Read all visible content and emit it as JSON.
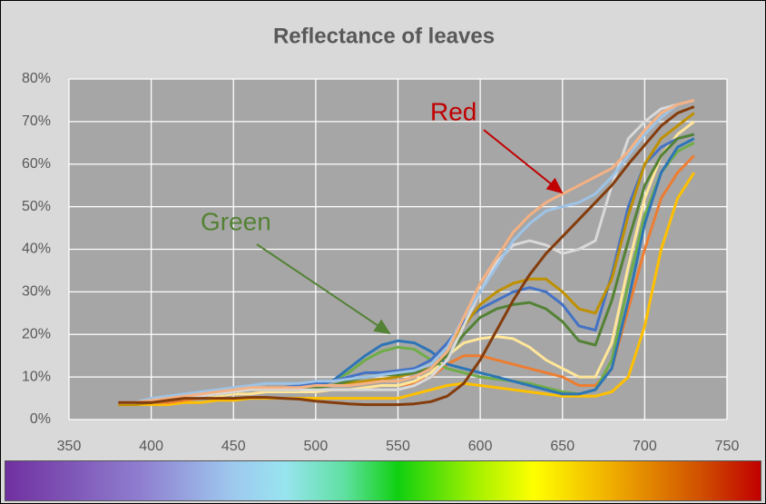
{
  "chart_data": {
    "type": "line",
    "title": "Reflectance of leaves",
    "x": [
      380,
      390,
      400,
      410,
      420,
      430,
      440,
      450,
      460,
      470,
      480,
      490,
      500,
      510,
      520,
      530,
      540,
      550,
      560,
      570,
      580,
      590,
      600,
      610,
      620,
      630,
      640,
      650,
      660,
      670,
      680,
      690,
      700,
      710,
      720,
      730
    ],
    "xlim": [
      350,
      750
    ],
    "xticks": [
      350,
      400,
      450,
      500,
      550,
      600,
      650,
      700,
      750
    ],
    "ylim": [
      0,
      80
    ],
    "yticks": [
      {
        "value": 0,
        "label": "0%"
      },
      {
        "value": 10,
        "label": "10%"
      },
      {
        "value": 20,
        "label": "20%"
      },
      {
        "value": 30,
        "label": "30%"
      },
      {
        "value": 40,
        "label": "40%"
      },
      {
        "value": 50,
        "label": "50%"
      },
      {
        "value": 60,
        "label": "60%"
      },
      {
        "value": 70,
        "label": "70%"
      },
      {
        "value": 80,
        "label": "80%"
      }
    ],
    "grid": true,
    "series": [
      {
        "color": "#ffc000",
        "values": [
          3.5,
          3.5,
          3.5,
          3.5,
          4,
          4,
          4.5,
          4.5,
          5,
          5,
          5,
          5,
          5,
          5,
          5,
          5,
          5,
          5,
          6,
          7,
          8,
          8.5,
          8,
          7.5,
          7,
          6.5,
          6,
          5.5,
          5.5,
          5.5,
          6.5,
          10,
          22,
          40,
          52,
          58
        ]
      },
      {
        "color": "#ed7d31",
        "values": [
          3.5,
          3.5,
          4,
          4,
          4.5,
          5,
          5.5,
          6,
          6,
          6.5,
          6.5,
          6.5,
          6.5,
          7,
          7,
          7.5,
          8,
          8,
          8.5,
          10,
          13,
          15,
          15,
          14,
          13,
          12,
          11,
          10,
          8,
          8,
          12,
          26,
          40,
          52,
          58,
          62
        ]
      },
      {
        "color": "#ffe699",
        "values": [
          4,
          4,
          4,
          4.5,
          5,
          5,
          5.5,
          6,
          6,
          6.5,
          6.5,
          6.5,
          6.5,
          7,
          7,
          7.5,
          8,
          8,
          9,
          11,
          15,
          18,
          19,
          19.5,
          19,
          17,
          14,
          12,
          10,
          10,
          18,
          36,
          52,
          62,
          67,
          70
        ]
      },
      {
        "color": "#70ad47",
        "values": [
          4,
          4,
          4,
          4.5,
          5,
          5.5,
          6,
          6.5,
          7,
          7.5,
          7.5,
          7.5,
          8,
          9,
          11,
          14,
          16,
          17,
          16.5,
          14,
          12,
          11,
          10,
          9.5,
          9,
          8.5,
          7.5,
          6.5,
          6,
          7,
          14,
          32,
          48,
          58,
          63,
          65
        ]
      },
      {
        "color": "#2e75b6",
        "values": [
          4,
          4,
          4,
          4.5,
          5,
          5.5,
          6,
          6.5,
          7,
          7.5,
          7.5,
          7.5,
          8,
          9,
          12,
          15,
          17.5,
          18.5,
          18,
          16,
          13,
          12,
          11,
          10,
          9,
          8,
          7,
          6,
          6,
          7,
          12,
          28,
          46,
          58,
          64,
          66
        ]
      },
      {
        "color": "#4472c4",
        "values": [
          4,
          4,
          4,
          4.5,
          5,
          5.5,
          6,
          6.5,
          7,
          7.5,
          7.5,
          8,
          8.5,
          9,
          10,
          11,
          11,
          11.5,
          12,
          14,
          18,
          23,
          26,
          28,
          30,
          31,
          30,
          27,
          22,
          21,
          34,
          50,
          60,
          64,
          66,
          67
        ]
      },
      {
        "color": "#bf9000",
        "values": [
          3.5,
          3.5,
          4,
          4.5,
          5,
          5.5,
          6,
          6.5,
          7,
          7,
          7,
          7,
          7.5,
          8,
          8.5,
          9,
          9.5,
          10,
          11,
          13,
          17,
          22,
          27,
          30,
          32,
          33,
          33,
          30,
          26,
          25,
          33,
          48,
          60,
          66,
          69,
          72
        ]
      },
      {
        "color": "#548235",
        "values": [
          4,
          4,
          4,
          4.5,
          5,
          5.5,
          6,
          6.5,
          7,
          7,
          7,
          7,
          7.5,
          8,
          9,
          10,
          10.5,
          10.5,
          11,
          12,
          15,
          20,
          24,
          26,
          27,
          27.5,
          26,
          23,
          18.5,
          17.5,
          28,
          42,
          55,
          62,
          66,
          67
        ]
      },
      {
        "color": "#d9d9d9",
        "values": [
          4,
          4,
          4.5,
          5,
          5,
          5.5,
          6,
          6.5,
          7,
          7,
          7,
          7,
          7,
          7,
          7,
          7,
          7,
          7,
          8,
          10,
          14,
          22,
          30,
          37,
          41,
          42,
          41,
          39,
          40,
          42,
          55,
          66,
          70,
          73,
          74,
          75
        ]
      },
      {
        "color": "#9dc3e6",
        "values": [
          4,
          4,
          5,
          5.5,
          6,
          6.5,
          7,
          7.5,
          8,
          8.5,
          8.5,
          8.5,
          9,
          9,
          9.5,
          10,
          10.5,
          11,
          11.5,
          13,
          17,
          24,
          30,
          36,
          42,
          46,
          49,
          50,
          51,
          53,
          57,
          62,
          67,
          71,
          74,
          75
        ]
      },
      {
        "color": "#f4b183",
        "values": [
          4,
          4,
          4.5,
          5,
          5.5,
          6,
          6.5,
          7,
          7.5,
          7.5,
          7.5,
          7.5,
          8,
          8,
          8,
          8.5,
          9,
          9,
          10,
          12,
          16,
          24,
          32,
          38,
          44,
          48,
          51,
          53,
          55,
          57,
          59,
          63,
          68,
          72,
          74,
          75
        ]
      },
      {
        "color": "#843c0c",
        "values": [
          4,
          4,
          4,
          4.5,
          5,
          5,
          5,
          5,
          5.2,
          5.2,
          5,
          4.8,
          4.3,
          4,
          3.7,
          3.5,
          3.5,
          3.5,
          3.7,
          4.2,
          5.5,
          8.5,
          14,
          21,
          28,
          34,
          39,
          43,
          47,
          51,
          55,
          60,
          64.5,
          69,
          72,
          73.5
        ]
      }
    ],
    "annotations": [
      {
        "text": "Red",
        "color": "#c00000"
      },
      {
        "text": "Green",
        "color": "#548235"
      }
    ]
  }
}
